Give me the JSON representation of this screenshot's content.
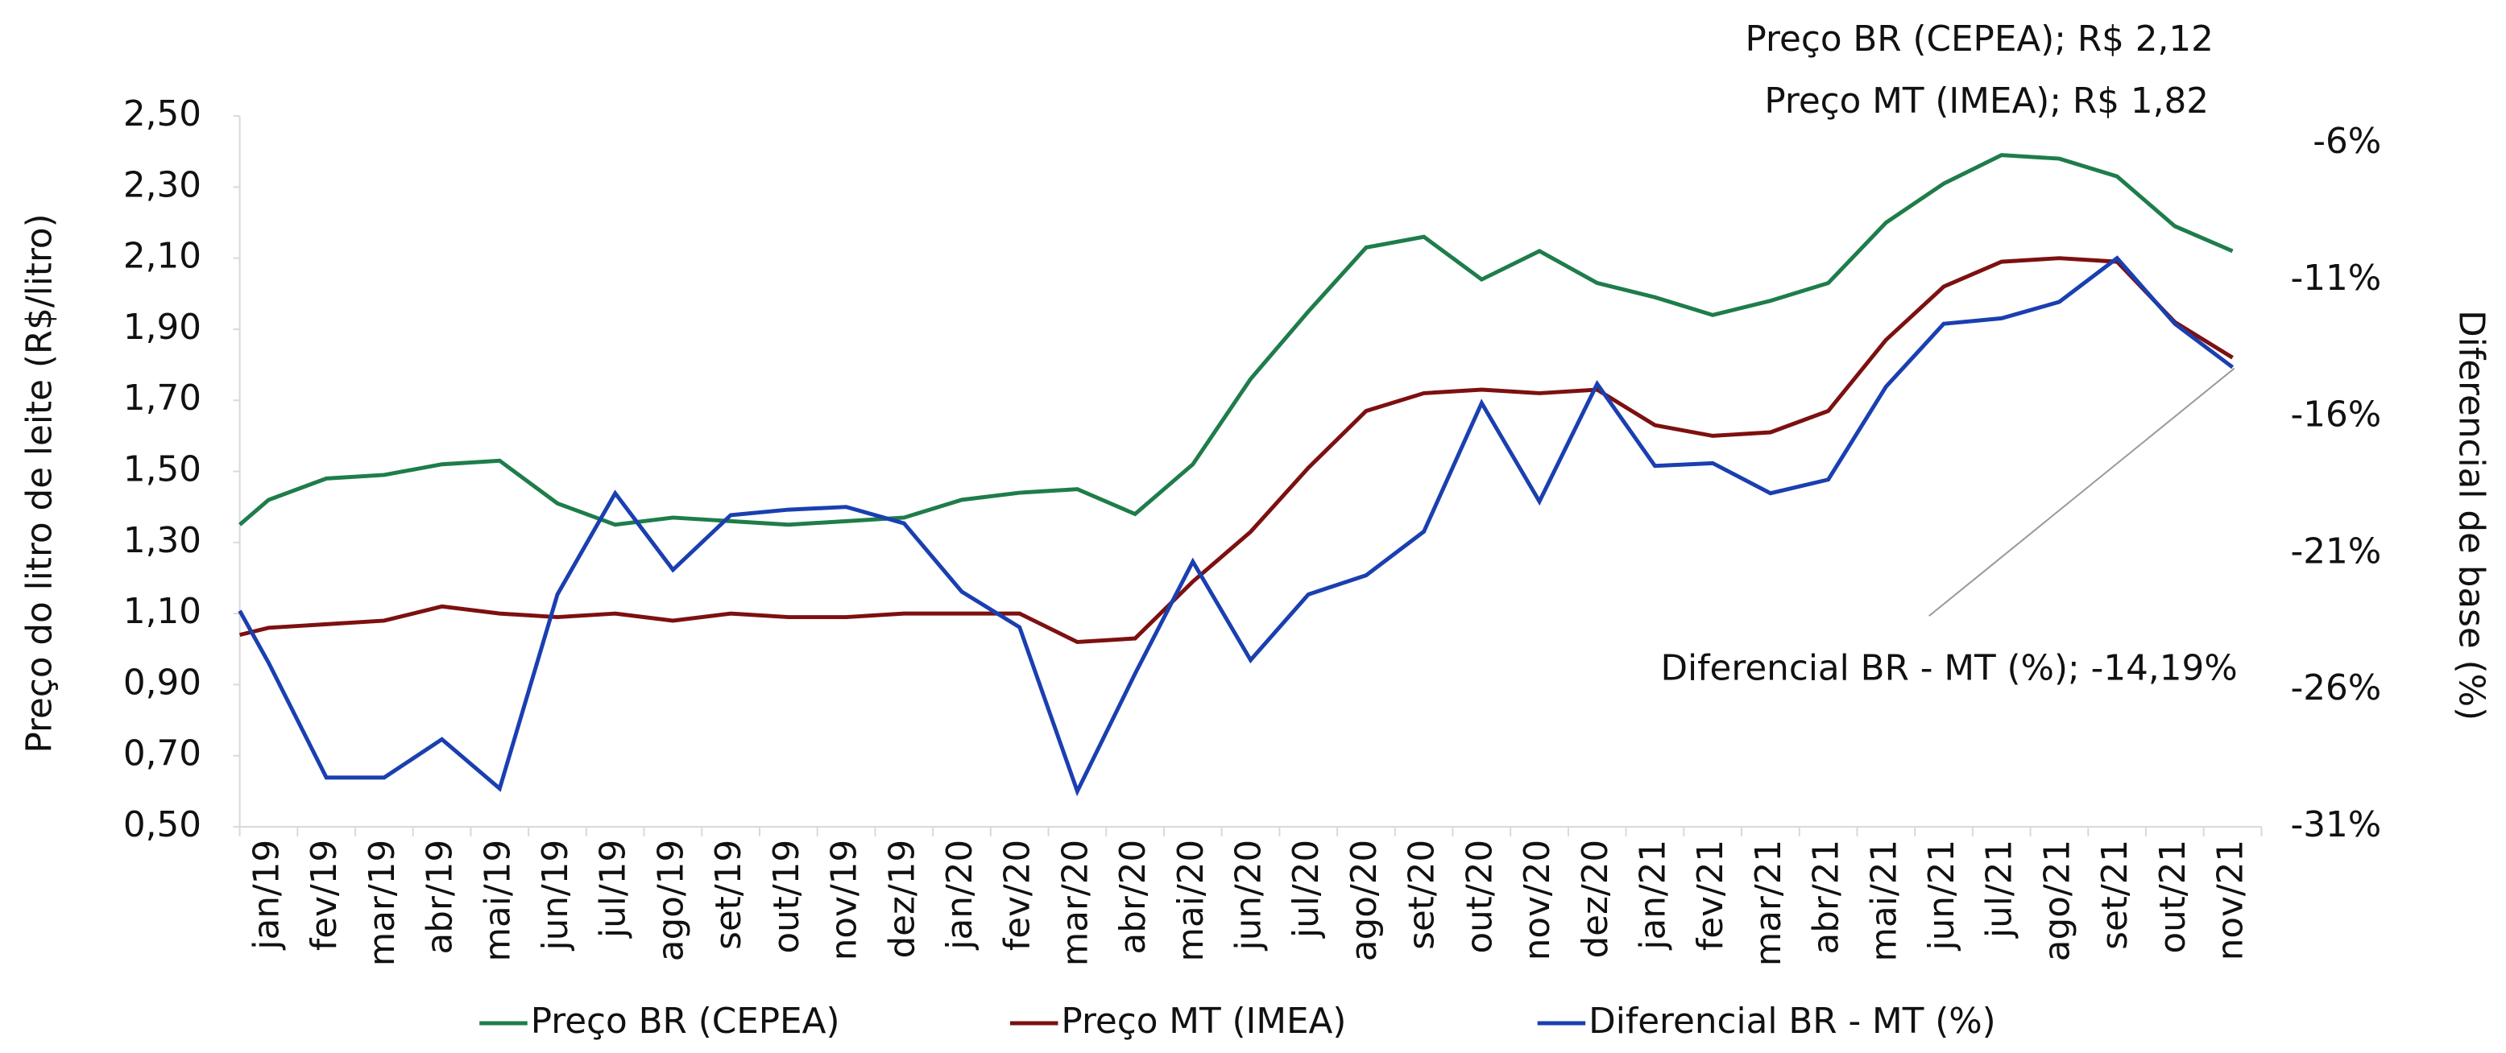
{
  "chart_data": {
    "type": "line",
    "annotations": [
      "Preço BR (CEPEA); R$ 2,12",
      "Preço MT (IMEA); R$ 1,82",
      "Diferencial BR - MT (%); -14,19%"
    ],
    "y_label": "Preço do litro de leite (R$/litro)",
    "y2_label": "Diferencial de base (%)",
    "categories": [
      null,
      "jan/19",
      "fev/19",
      "mar/19",
      "abr/19",
      "mai/19",
      "jun/19",
      "jul/19",
      "ago/19",
      "set/19",
      "out/19",
      "nov/19",
      "dez/19",
      "jan/20",
      "fev/20",
      "mar/20",
      "abr/20",
      "mai/20",
      "jun/20",
      "jul/20",
      "ago/20",
      "set/20",
      "out/20",
      "nov/20",
      "dez/20",
      "jan/21",
      "fev/21",
      "mar/21",
      "abr/21",
      "mai/21",
      "jun/21",
      "jul/21",
      "ago/21",
      "set/21",
      "out/21",
      "nov/21"
    ],
    "series": [
      {
        "name": "Preço BR (CEPEA)",
        "color": "#1e7d4a",
        "values": [
          1.35,
          1.42,
          1.48,
          1.49,
          1.52,
          1.53,
          1.41,
          1.35,
          1.37,
          1.36,
          1.35,
          1.36,
          1.37,
          1.42,
          1.44,
          1.45,
          1.38,
          1.52,
          1.76,
          1.95,
          2.13,
          2.16,
          2.04,
          2.12,
          2.03,
          1.99,
          1.94,
          1.98,
          2.03,
          2.2,
          2.31,
          2.39,
          2.38,
          2.33,
          2.19,
          2.12
        ]
      },
      {
        "name": "Preço MT (IMEA)",
        "color": "#7d1010",
        "values": [
          1.04,
          1.06,
          1.07,
          1.08,
          1.12,
          1.1,
          1.09,
          1.1,
          1.08,
          1.1,
          1.09,
          1.09,
          1.1,
          1.1,
          1.1,
          1.02,
          1.03,
          1.19,
          1.33,
          1.51,
          1.67,
          1.72,
          1.73,
          1.72,
          1.73,
          1.63,
          1.6,
          1.61,
          1.67,
          1.87,
          2.02,
          2.09,
          2.1,
          2.09,
          1.92,
          1.82
        ]
      },
      {
        "name": "Diferencial BR - MT (%)",
        "color": "#1a3fb0",
        "axis": "y2",
        "values": [
          -23.1,
          -25.0,
          -29.2,
          -29.2,
          -27.8,
          -29.6,
          -22.5,
          -18.8,
          -21.6,
          -19.6,
          -19.4,
          -19.3,
          -19.9,
          -22.4,
          -23.7,
          -29.7,
          -25.4,
          -21.3,
          -24.9,
          -22.5,
          -21.8,
          -20.2,
          -15.5,
          -19.1,
          -14.8,
          -17.8,
          -17.7,
          -18.8,
          -18.3,
          -14.9,
          -12.6,
          -12.4,
          -11.8,
          -10.2,
          -12.6,
          -14.19
        ]
      }
    ],
    "ylim": [
      0.5,
      2.5
    ],
    "yticks": [
      {
        "value": 0.5,
        "label": "0,50"
      },
      {
        "value": 0.7,
        "label": "0,70"
      },
      {
        "value": 0.9,
        "label": "0,90"
      },
      {
        "value": 1.1,
        "label": "1,10"
      },
      {
        "value": 1.3,
        "label": "1,30"
      },
      {
        "value": 1.5,
        "label": "1,50"
      },
      {
        "value": 1.7,
        "label": "1,70"
      },
      {
        "value": 1.9,
        "label": "1,90"
      },
      {
        "value": 2.1,
        "label": "2,10"
      },
      {
        "value": 2.3,
        "label": "2,30"
      },
      {
        "value": 2.5,
        "label": "2,50"
      }
    ],
    "y2lim": [
      -31,
      -5
    ],
    "y2ticks": [
      {
        "value": -31,
        "label": "-31%"
      },
      {
        "value": -26,
        "label": "-26%"
      },
      {
        "value": -21,
        "label": "-21%"
      },
      {
        "value": -16,
        "label": "-16%"
      },
      {
        "value": -11,
        "label": "-11%"
      },
      {
        "value": -6,
        "label": "-6%"
      }
    ],
    "grid": false,
    "legend": "bottom"
  }
}
